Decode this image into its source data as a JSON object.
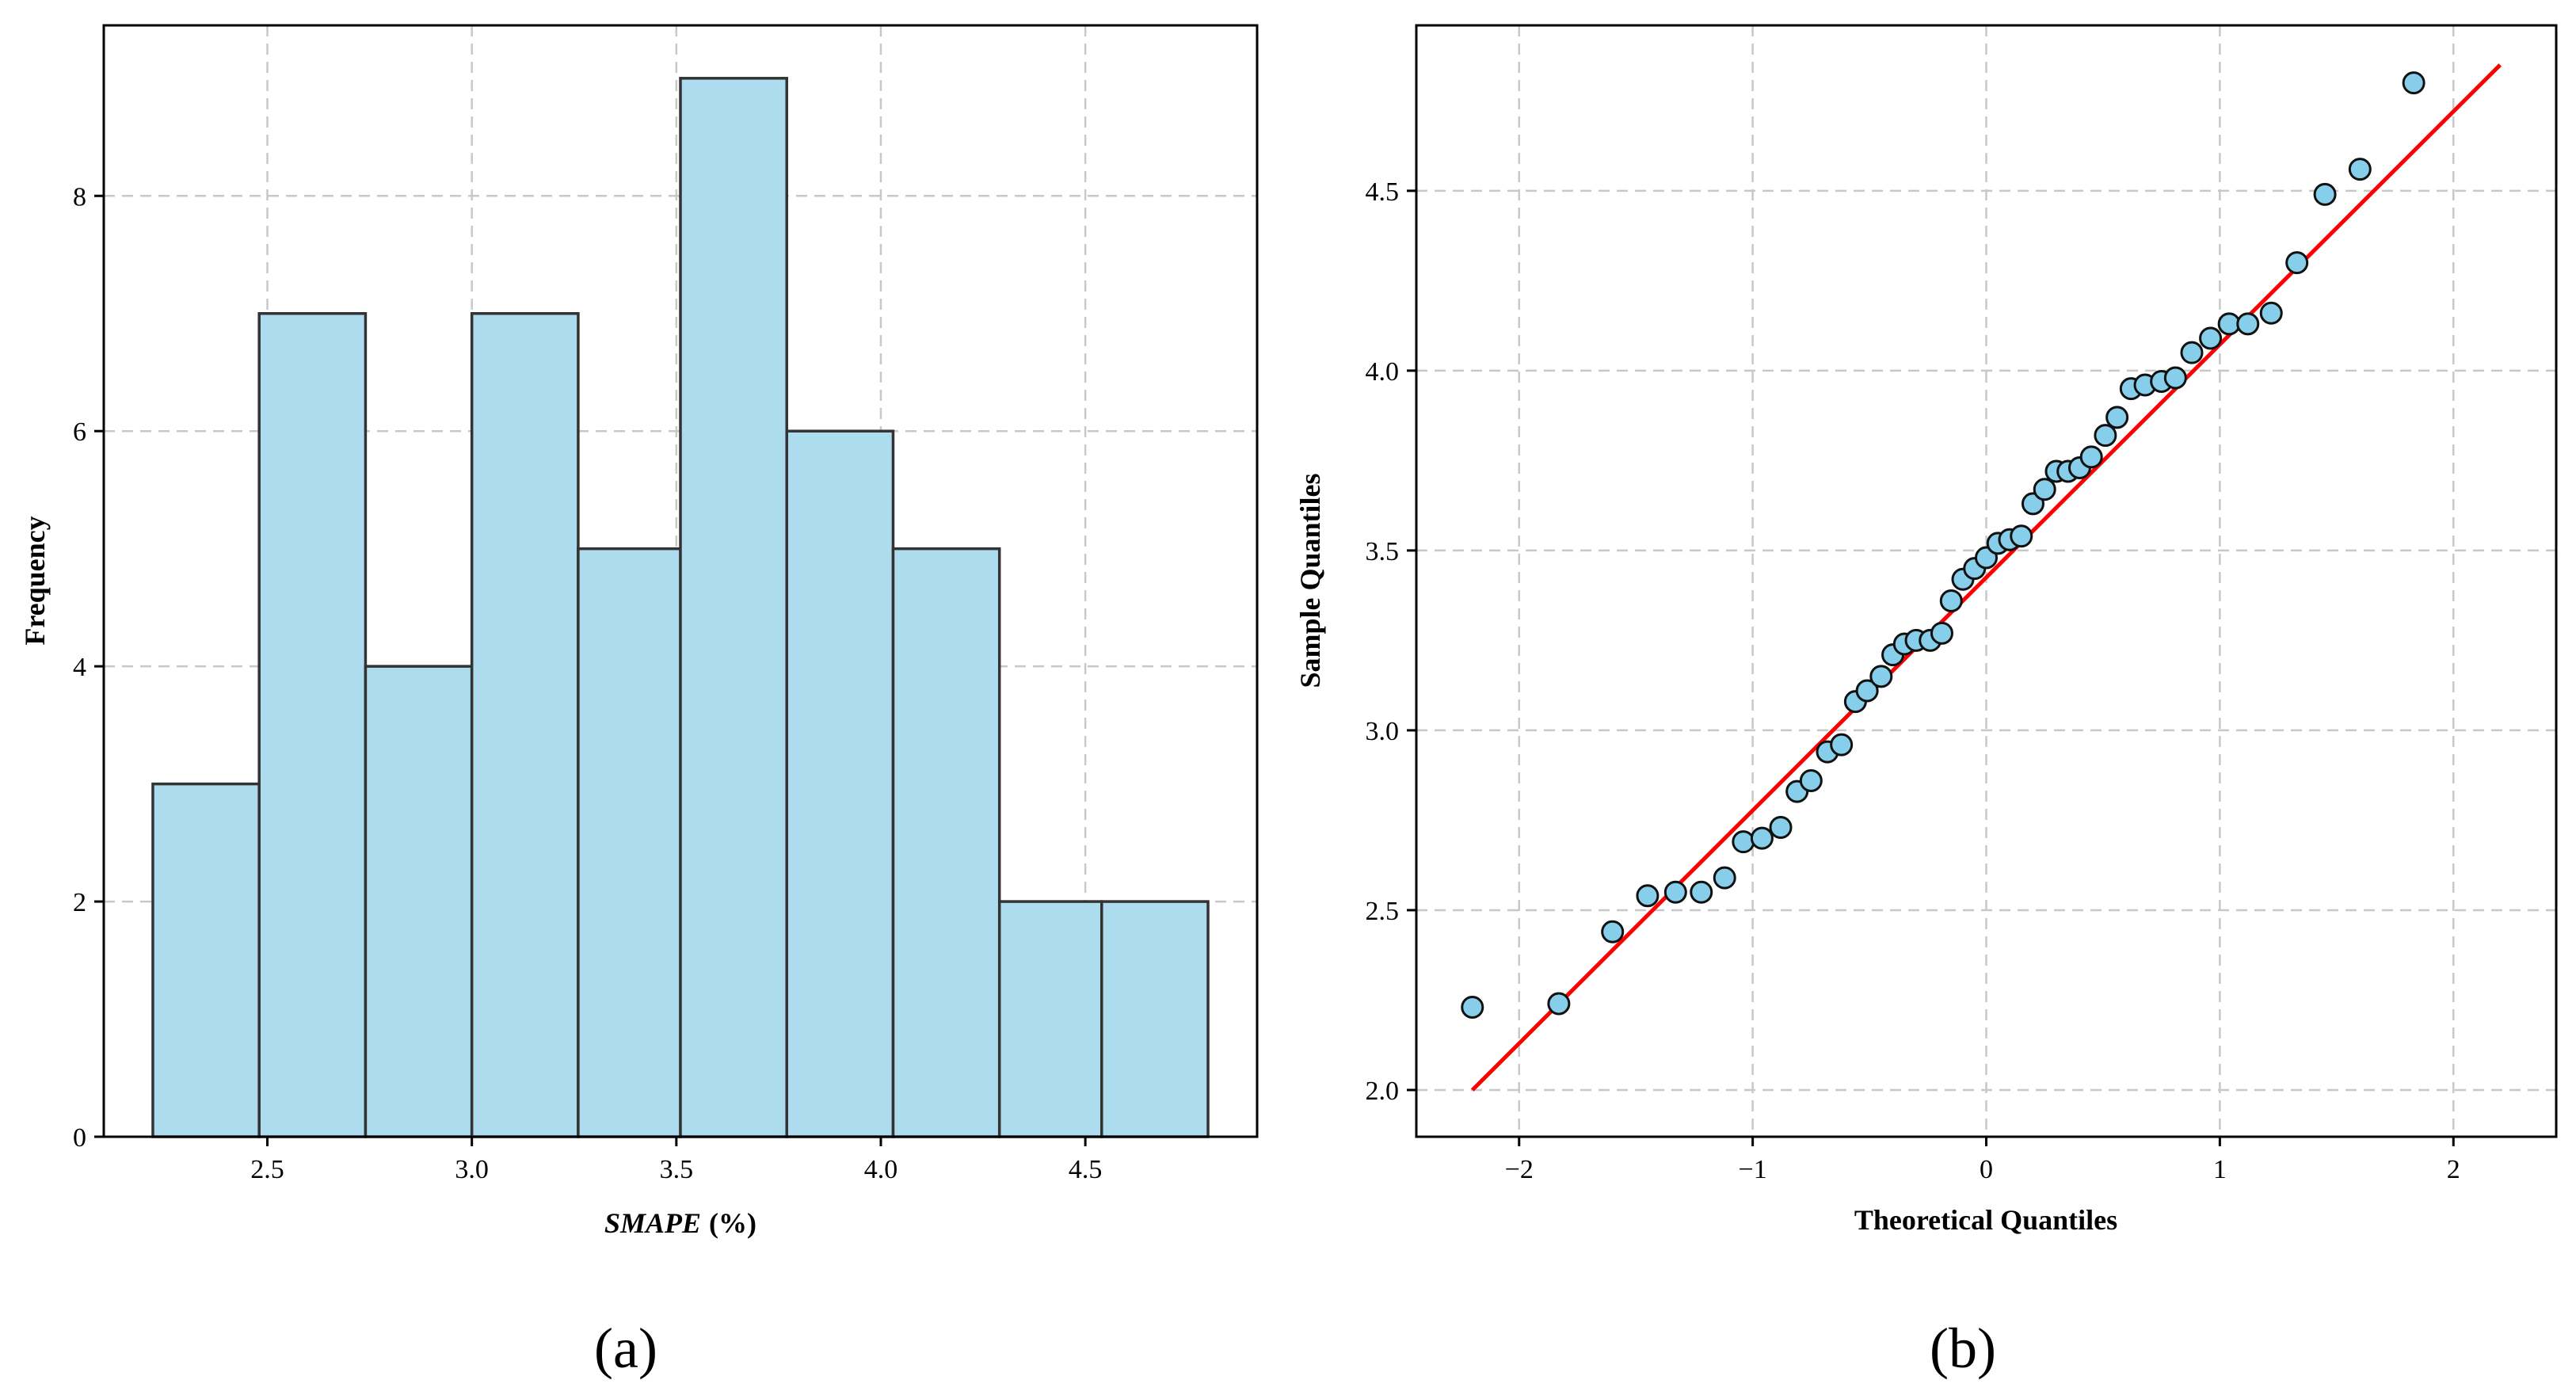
{
  "chart_data": [
    {
      "type": "bar",
      "subtype": "histogram",
      "panel_label": "(a)",
      "bins": [
        {
          "start": 2.22,
          "end": 2.48,
          "count": 3
        },
        {
          "start": 2.48,
          "end": 2.74,
          "count": 7
        },
        {
          "start": 2.74,
          "end": 3.0,
          "count": 4
        },
        {
          "start": 3.0,
          "end": 3.26,
          "count": 7
        },
        {
          "start": 3.26,
          "end": 3.51,
          "count": 5
        },
        {
          "start": 3.51,
          "end": 3.77,
          "count": 9
        },
        {
          "start": 3.77,
          "end": 4.03,
          "count": 6
        },
        {
          "start": 4.03,
          "end": 4.29,
          "count": 5
        },
        {
          "start": 4.29,
          "end": 4.54,
          "count": 2
        },
        {
          "start": 4.54,
          "end": 4.8,
          "count": 2
        }
      ],
      "xlabel_italic": "SMAPE",
      "xlabel_rest": "(%)",
      "ylabel": "Frequency",
      "xlim": [
        2.1,
        4.92
      ],
      "ylim": [
        0,
        9.45
      ],
      "xticks": [
        2.5,
        3.0,
        3.5,
        4.0,
        4.5
      ],
      "xtick_labels": [
        "2.5",
        "3.0",
        "3.5",
        "4.0",
        "4.5"
      ],
      "yticks": [
        0,
        2,
        4,
        6,
        8
      ],
      "ytick_labels": [
        "0",
        "2",
        "4",
        "6",
        "8"
      ],
      "grid": true,
      "bar_color": "#ADDCEF",
      "edge_color": "#333333"
    },
    {
      "type": "scatter",
      "subtype": "qq-plot",
      "panel_label": "(b)",
      "xlabel": "Theoretical Quantiles",
      "ylabel": "Sample Quantiles",
      "xlim": [
        -2.44,
        2.44
      ],
      "ylim": [
        1.87,
        4.96
      ],
      "xticks": [
        -2,
        -1,
        0,
        1,
        2
      ],
      "xtick_labels": [
        "−2",
        "−1",
        "0",
        "1",
        "2"
      ],
      "yticks": [
        2.0,
        2.5,
        3.0,
        3.5,
        4.0,
        4.5
      ],
      "ytick_labels": [
        "2.0",
        "2.5",
        "3.0",
        "3.5",
        "4.0",
        "4.5"
      ],
      "grid": true,
      "point_color": "#87CEEB",
      "line_color": "#FF0000",
      "reference_line": {
        "x": [
          -2.2,
          2.2
        ],
        "y": [
          2.0,
          4.85
        ]
      },
      "points": [
        [
          -2.2,
          2.23
        ],
        [
          -1.83,
          2.24
        ],
        [
          -1.6,
          2.44
        ],
        [
          -1.45,
          2.54
        ],
        [
          -1.33,
          2.55
        ],
        [
          -1.22,
          2.55
        ],
        [
          -1.12,
          2.59
        ],
        [
          -1.04,
          2.69
        ],
        [
          -0.96,
          2.7
        ],
        [
          -0.88,
          2.73
        ],
        [
          -0.81,
          2.83
        ],
        [
          -0.75,
          2.86
        ],
        [
          -0.68,
          2.94
        ],
        [
          -0.62,
          2.96
        ],
        [
          -0.56,
          3.08
        ],
        [
          -0.51,
          3.11
        ],
        [
          -0.45,
          3.15
        ],
        [
          -0.4,
          3.21
        ],
        [
          -0.35,
          3.24
        ],
        [
          -0.3,
          3.25
        ],
        [
          -0.24,
          3.25
        ],
        [
          -0.19,
          3.27
        ],
        [
          -0.15,
          3.36
        ],
        [
          -0.1,
          3.42
        ],
        [
          -0.05,
          3.45
        ],
        [
          0.0,
          3.48
        ],
        [
          0.05,
          3.52
        ],
        [
          0.1,
          3.53
        ],
        [
          0.15,
          3.54
        ],
        [
          0.2,
          3.63
        ],
        [
          0.25,
          3.67
        ],
        [
          0.3,
          3.72
        ],
        [
          0.35,
          3.72
        ],
        [
          0.4,
          3.73
        ],
        [
          0.45,
          3.76
        ],
        [
          0.51,
          3.82
        ],
        [
          0.56,
          3.87
        ],
        [
          0.62,
          3.95
        ],
        [
          0.68,
          3.96
        ],
        [
          0.75,
          3.97
        ],
        [
          0.81,
          3.98
        ],
        [
          0.88,
          4.05
        ],
        [
          0.96,
          4.09
        ],
        [
          1.04,
          4.13
        ],
        [
          1.12,
          4.13
        ],
        [
          1.22,
          4.16
        ],
        [
          1.33,
          4.3
        ],
        [
          1.45,
          4.49
        ],
        [
          1.6,
          4.56
        ],
        [
          1.83,
          4.8
        ]
      ]
    }
  ]
}
